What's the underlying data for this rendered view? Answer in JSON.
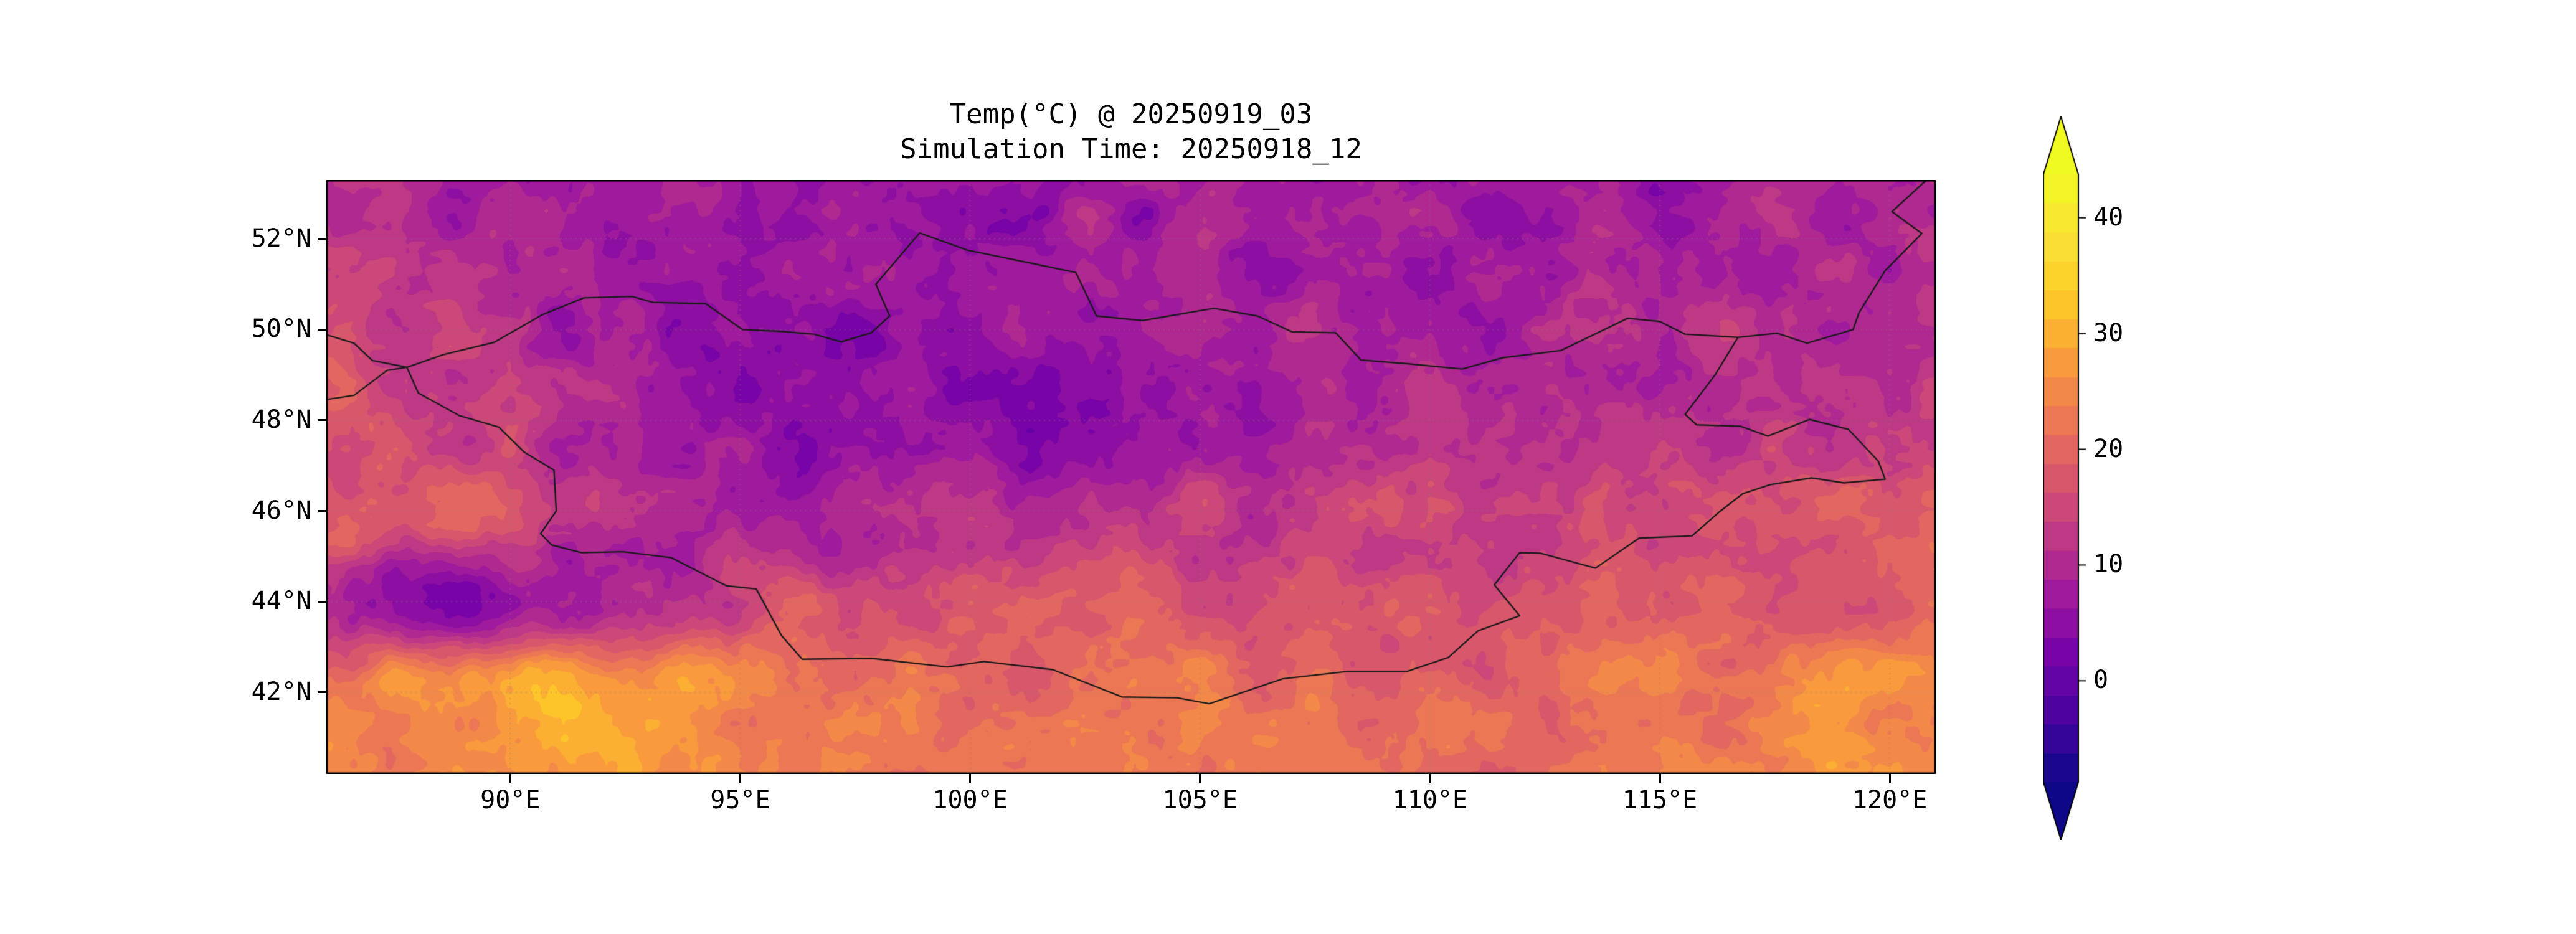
{
  "figure": {
    "background": "#ffffff",
    "frame_color": "#000000",
    "border_color": "#1a1a1a",
    "gridline_color": "rgba(130,130,130,0.45)",
    "tick_color": "#000000"
  },
  "chart_data": {
    "type": "heatmap",
    "title": "Temp(°C) @ 20250919_03",
    "subtitle": "Simulation Time: 20250918_12",
    "variable": "Temp(°C)",
    "valid_time": "20250919_03",
    "simulation_time": "20250918_12",
    "extent": {
      "lon_min": 86.0,
      "lon_max": 121.0,
      "lat_min": 40.2,
      "lat_max": 53.3
    },
    "x_ticks": {
      "values": [
        90,
        95,
        100,
        105,
        110,
        115,
        120
      ],
      "labels": [
        "90°E",
        "95°E",
        "100°E",
        "105°E",
        "110°E",
        "115°E",
        "120°E"
      ]
    },
    "y_ticks": {
      "values": [
        52,
        50,
        48,
        46,
        44,
        42
      ],
      "labels": [
        "52°N",
        "50°N",
        "48°N",
        "46°N",
        "44°N",
        "42°N"
      ]
    },
    "colorbar": {
      "vmin": -8.75,
      "vmax": 43.75,
      "step": 2.5,
      "ticks": [
        0,
        10,
        20,
        30,
        40
      ],
      "tick_labels": [
        "0",
        "10",
        "20",
        "30",
        "40"
      ],
      "colormap": "plasma",
      "extend": "both"
    },
    "colormap_stops": [
      [
        0.0,
        "#0d0887"
      ],
      [
        0.1,
        "#46039f"
      ],
      [
        0.2,
        "#7201a8"
      ],
      [
        0.3,
        "#9c179e"
      ],
      [
        0.4,
        "#bd3786"
      ],
      [
        0.5,
        "#d8576b"
      ],
      [
        0.6,
        "#ed7953"
      ],
      [
        0.7,
        "#fa9e3b"
      ],
      [
        0.8,
        "#fdcb26"
      ],
      [
        0.9,
        "#fbe336"
      ],
      [
        1.0,
        "#f0f921"
      ]
    ],
    "grid": {
      "lons": [
        86,
        88.5,
        91,
        93.5,
        96,
        98.5,
        101,
        103.5,
        106,
        108.5,
        111,
        113.5,
        116,
        118.5,
        121
      ],
      "lats": [
        53.3,
        51.4,
        49.6,
        47.7,
        45.8,
        43.9,
        42.1,
        40.2
      ],
      "temps": [
        [
          10,
          9,
          8,
          8,
          8,
          7,
          7,
          8,
          8,
          7,
          7,
          8,
          8,
          9,
          10
        ],
        [
          12,
          10,
          8,
          7,
          6,
          6,
          7,
          8,
          8,
          8,
          8,
          9,
          9,
          10,
          11
        ],
        [
          16,
          13,
          9,
          7,
          5,
          5,
          6,
          7,
          8,
          9,
          9,
          10,
          11,
          12,
          12
        ],
        [
          18,
          15,
          11,
          7,
          5,
          4,
          5,
          6,
          8,
          10,
          11,
          12,
          12,
          13,
          14
        ],
        [
          19,
          18,
          14,
          11,
          10,
          10,
          11,
          12,
          13,
          14,
          15,
          15,
          16,
          17,
          17
        ],
        [
          6,
          2,
          8,
          12,
          16,
          17,
          18,
          18,
          18,
          17,
          17,
          18,
          19,
          19,
          20
        ],
        [
          22,
          27,
          29,
          27,
          22,
          21,
          20,
          21,
          21,
          20,
          20,
          21,
          22,
          25,
          26
        ],
        [
          23,
          26,
          28,
          26,
          23,
          22,
          21,
          22,
          22,
          21,
          21,
          22,
          23,
          25,
          27
        ]
      ]
    },
    "borders": {
      "country": [
        [
          87.75,
          49.17
        ],
        [
          88.55,
          49.45
        ],
        [
          89.65,
          49.72
        ],
        [
          90.7,
          50.33
        ],
        [
          91.6,
          50.7
        ],
        [
          92.65,
          50.73
        ],
        [
          93.1,
          50.6
        ],
        [
          94.25,
          50.57
        ],
        [
          95.05,
          50.0
        ],
        [
          95.9,
          49.96
        ],
        [
          96.6,
          49.9
        ],
        [
          97.2,
          49.73
        ],
        [
          97.85,
          49.93
        ],
        [
          98.25,
          50.3
        ],
        [
          97.95,
          51.0
        ],
        [
          98.9,
          52.13
        ],
        [
          99.95,
          51.75
        ],
        [
          101.4,
          51.45
        ],
        [
          102.3,
          51.26
        ],
        [
          102.75,
          50.3
        ],
        [
          103.75,
          50.2
        ],
        [
          105.3,
          50.47
        ],
        [
          106.25,
          50.3
        ],
        [
          107.0,
          49.95
        ],
        [
          107.95,
          49.93
        ],
        [
          108.5,
          49.33
        ],
        [
          109.5,
          49.25
        ],
        [
          110.7,
          49.13
        ],
        [
          111.58,
          49.38
        ],
        [
          112.85,
          49.54
        ],
        [
          114.3,
          50.25
        ],
        [
          115.0,
          50.18
        ],
        [
          115.55,
          49.9
        ],
        [
          116.7,
          49.83
        ],
        [
          116.2,
          49.0
        ],
        [
          115.55,
          48.13
        ],
        [
          115.8,
          47.9
        ],
        [
          116.75,
          47.87
        ],
        [
          117.35,
          47.65
        ],
        [
          118.25,
          48.02
        ],
        [
          119.1,
          47.8
        ],
        [
          119.75,
          47.1
        ],
        [
          119.9,
          46.7
        ],
        [
          119.0,
          46.62
        ],
        [
          118.3,
          46.73
        ],
        [
          117.4,
          46.58
        ],
        [
          116.8,
          46.38
        ],
        [
          116.27,
          45.96
        ],
        [
          115.7,
          45.45
        ],
        [
          114.55,
          45.4
        ],
        [
          113.6,
          44.74
        ],
        [
          112.4,
          45.07
        ],
        [
          111.95,
          45.08
        ],
        [
          111.4,
          44.37
        ],
        [
          111.95,
          43.69
        ],
        [
          111.05,
          43.36
        ],
        [
          110.4,
          42.77
        ],
        [
          109.5,
          42.46
        ],
        [
          108.2,
          42.46
        ],
        [
          106.8,
          42.3
        ],
        [
          105.2,
          41.75
        ],
        [
          104.5,
          41.88
        ],
        [
          103.3,
          41.9
        ],
        [
          101.8,
          42.5
        ],
        [
          100.3,
          42.68
        ],
        [
          99.5,
          42.56
        ],
        [
          97.85,
          42.75
        ],
        [
          96.35,
          42.73
        ],
        [
          95.9,
          43.25
        ],
        [
          95.35,
          44.28
        ],
        [
          94.7,
          44.35
        ],
        [
          93.5,
          44.97
        ],
        [
          92.45,
          45.1
        ],
        [
          91.55,
          45.08
        ],
        [
          90.9,
          45.25
        ],
        [
          90.66,
          45.5
        ],
        [
          91.0,
          46.0
        ],
        [
          90.95,
          46.9
        ],
        [
          90.3,
          47.3
        ],
        [
          89.75,
          47.85
        ],
        [
          88.9,
          48.1
        ],
        [
          88.0,
          48.6
        ],
        [
          87.75,
          49.17
        ]
      ],
      "lines": [
        [
          [
            116.7,
            49.83
          ],
          [
            117.55,
            49.92
          ],
          [
            118.2,
            49.7
          ],
          [
            119.2,
            50.0
          ],
          [
            119.33,
            50.37
          ],
          [
            119.9,
            51.3
          ],
          [
            120.7,
            52.12
          ],
          [
            120.05,
            52.6
          ],
          [
            120.8,
            53.3
          ],
          [
            121.0,
            53.4
          ]
        ],
        [
          [
            87.75,
            49.17
          ],
          [
            87.32,
            49.1
          ],
          [
            86.6,
            48.55
          ],
          [
            85.95,
            48.45
          ],
          [
            85.55,
            48.15
          ],
          [
            85.6,
            47.4
          ],
          [
            85.2,
            47.0
          ]
        ],
        [
          [
            87.75,
            49.17
          ],
          [
            87.0,
            49.32
          ],
          [
            86.6,
            49.7
          ],
          [
            85.8,
            49.95
          ],
          [
            85.0,
            50.05
          ]
        ]
      ]
    }
  }
}
